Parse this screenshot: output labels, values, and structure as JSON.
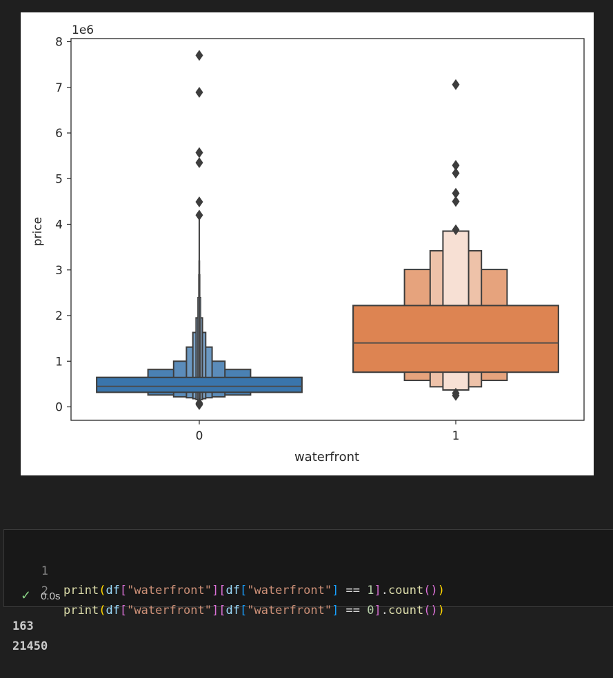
{
  "chart_data": {
    "type": "boxen",
    "xlabel": "waterfront",
    "ylabel": "price",
    "scale_label": "1e6",
    "categories": [
      "0",
      "1"
    ],
    "ylim": [
      -0.3,
      8.1
    ],
    "yticks": [
      0,
      1,
      2,
      3,
      4,
      5,
      6,
      7,
      8
    ],
    "grid": false,
    "series": [
      {
        "category": "0",
        "color": "#3a75ac",
        "median": 0.45,
        "boxes": [
          {
            "lo": 0.32,
            "hi": 0.645,
            "w": 0.8
          },
          {
            "lo": 0.26,
            "hi": 0.82,
            "w": 0.4
          },
          {
            "lo": 0.22,
            "hi": 1.0,
            "w": 0.2
          },
          {
            "lo": 0.2,
            "hi": 1.31,
            "w": 0.1
          },
          {
            "lo": 0.18,
            "hi": 1.63,
            "w": 0.05
          },
          {
            "lo": 0.16,
            "hi": 1.95,
            "w": 0.025
          },
          {
            "lo": 0.14,
            "hi": 2.4,
            "w": 0.0125
          },
          {
            "lo": 0.12,
            "hi": 2.9,
            "w": 0.006
          },
          {
            "lo": 0.1,
            "hi": 3.2,
            "w": 0.004
          },
          {
            "lo": 0.08,
            "hi": 4.25,
            "w": 0.003
          }
        ],
        "outliers": [
          7.7,
          6.89,
          5.57,
          5.35,
          4.49,
          4.2,
          0.08,
          0.05
        ]
      },
      {
        "category": "1",
        "color": "#dd8452",
        "median": 1.4,
        "boxes": [
          {
            "lo": 0.76,
            "hi": 2.22,
            "w": 0.8
          },
          {
            "lo": 0.58,
            "hi": 3.01,
            "w": 0.4
          },
          {
            "lo": 0.44,
            "hi": 3.42,
            "w": 0.2
          },
          {
            "lo": 0.37,
            "hi": 3.85,
            "w": 0.1
          }
        ],
        "outliers": [
          7.06,
          5.29,
          5.12,
          4.68,
          4.5,
          3.88,
          0.3,
          0.25
        ]
      }
    ]
  },
  "cell": {
    "lines": [
      {
        "num": "1",
        "value": "1"
      },
      {
        "num": "2",
        "value": "0"
      }
    ],
    "code_fn": "print",
    "code_var": "df",
    "code_key": "\"waterfront\"",
    "code_method": "count",
    "status_time": "0.0s"
  },
  "output": {
    "lines": [
      "163",
      "21450"
    ]
  },
  "icons": {
    "status": "check-icon"
  },
  "colors": {
    "background": "#1f1f1f",
    "cell_background": "#181818",
    "success": "#89d185"
  }
}
